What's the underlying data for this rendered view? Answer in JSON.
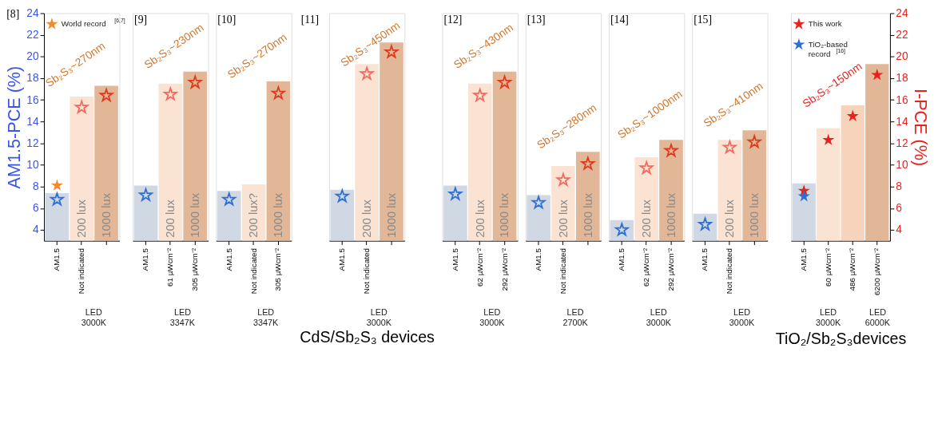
{
  "chart_data": [
    {
      "type": "bar",
      "title": "[8]",
      "ylabel": "AM1.5-PCE (%)",
      "ylim": [
        3,
        24
      ],
      "yticks": [
        4,
        6,
        8,
        10,
        12,
        14,
        16,
        18,
        20,
        22,
        24
      ],
      "legend": "top left",
      "marker": "star",
      "categories": [
        "AM1.5",
        "Not indicated",
        null
      ],
      "annotations": [
        "Sb₂S₃~270nm",
        "LED 3000K"
      ],
      "series": [
        {
          "color": "#cfd8e3",
          "values": [
            7.4,
            null,
            null
          ]
        },
        {
          "name": "200 lux",
          "color": "#fbe3d4",
          "values": [
            null,
            16.3,
            null
          ]
        },
        {
          "name": "1000 lux",
          "color": "#e2b797",
          "values": [
            null,
            null,
            17.3
          ]
        },
        {
          "type": "scatter",
          "values": [
            6.8,
            15.3,
            16.4
          ],
          "colors": [
            "#2e6fd1",
            "#f06a5e",
            "#e03a1e"
          ]
        },
        {
          "type": "scatter",
          "name": "World record $^{[6,7]}$",
          "color": "#f08a2a",
          "values": [
            8.1,
            null,
            null
          ]
        }
      ]
    },
    {
      "type": "bar",
      "title": "[9]",
      "ylim": [
        3,
        24
      ],
      "tick_labels": "x",
      "marker": "star",
      "categories": [
        "AM1.5",
        "61 µWcm⁻²",
        "305 µWcm⁻²"
      ],
      "annotations": [
        "Sb₂S₃~230nm",
        "LED 3347K"
      ],
      "series": [
        {
          "color": "#cfd8e3",
          "values": [
            8.1,
            null,
            null
          ]
        },
        {
          "name": "200 lux",
          "color": "#fbe3d4",
          "values": [
            null,
            17.5,
            null
          ]
        },
        {
          "name": "1000 lux",
          "color": "#e2b797",
          "values": [
            null,
            null,
            18.6
          ]
        },
        {
          "type": "scatter",
          "values": [
            7.2,
            16.5,
            17.6
          ],
          "colors": [
            "#2e6fd1",
            "#f06a5e",
            "#e03a1e"
          ]
        }
      ]
    },
    {
      "type": "bar",
      "title": "[10]",
      "ylim": [
        3,
        24
      ],
      "tick_labels": "x",
      "marker": "star",
      "categories": [
        "AM1.5",
        "Not indicated",
        "305 µWcm⁻²"
      ],
      "annotations": [
        "Sb₂S₃~270nm",
        "LED 3347K"
      ],
      "series": [
        {
          "color": "#cfd8e3",
          "values": [
            7.6,
            null,
            null
          ]
        },
        {
          "name": "200 lux?",
          "color": "#fbe3d4",
          "values": [
            null,
            8.2,
            null
          ]
        },
        {
          "name": "1000 lux",
          "color": "#e2b797",
          "values": [
            null,
            null,
            17.7
          ]
        },
        {
          "type": "scatter",
          "values": [
            6.8,
            null,
            16.6
          ],
          "colors": [
            "#2e6fd1",
            "#f06a5e",
            "#e03a1e"
          ]
        }
      ]
    },
    {
      "type": "bar",
      "title": "[11]",
      "ylim": [
        3,
        24
      ],
      "tick_labels": "x",
      "marker": "star",
      "xlabel": "CdS/Sb₂S₃ devices",
      "categories": [
        "AM1.5",
        "Not indicated",
        null
      ],
      "annotations": [
        "Sb₂S₃~450nm",
        "LED 3000K"
      ],
      "series": [
        {
          "color": "#cfd8e3",
          "values": [
            7.7,
            null,
            null
          ]
        },
        {
          "name": "200 lux",
          "color": "#fbe3d4",
          "values": [
            null,
            19.3,
            null
          ]
        },
        {
          "name": "1000 lux",
          "color": "#e2b797",
          "values": [
            null,
            null,
            21.3
          ]
        },
        {
          "type": "scatter",
          "values": [
            7.1,
            18.4,
            20.4
          ],
          "colors": [
            "#2e6fd1",
            "#f06a5e",
            "#e03a1e"
          ]
        }
      ]
    },
    {
      "type": "bar",
      "title": "[12]",
      "ylim": [
        3,
        24
      ],
      "tick_labels": "x",
      "marker": "star",
      "categories": [
        "AM1.5",
        "62 µWcm⁻²",
        "292 µWcm⁻²"
      ],
      "annotations": [
        "Sb₂S₃~430nm",
        "LED 3000K"
      ],
      "series": [
        {
          "color": "#cfd8e3",
          "values": [
            8.1,
            null,
            null
          ]
        },
        {
          "name": "200 lux",
          "color": "#fbe3d4",
          "values": [
            null,
            17.5,
            null
          ]
        },
        {
          "name": "1000 lux",
          "color": "#e2b797",
          "values": [
            null,
            null,
            18.6
          ]
        },
        {
          "type": "scatter",
          "values": [
            7.3,
            16.4,
            17.6
          ],
          "colors": [
            "#2e6fd1",
            "#f06a5e",
            "#e03a1e"
          ]
        }
      ]
    },
    {
      "type": "bar",
      "title": "[13]",
      "ylim": [
        3,
        24
      ],
      "tick_labels": "x",
      "marker": "star",
      "categories": [
        "AM1.5",
        "Not indicated",
        null
      ],
      "annotations": [
        "Sb₂S₃~280nm",
        "LED 2700K"
      ],
      "series": [
        {
          "color": "#cfd8e3",
          "values": [
            7.2,
            null,
            null
          ]
        },
        {
          "name": "200 lux",
          "color": "#fbe3d4",
          "values": [
            null,
            9.9,
            null
          ]
        },
        {
          "name": "1000 lux",
          "color": "#e2b797",
          "values": [
            null,
            null,
            11.2
          ]
        },
        {
          "type": "scatter",
          "values": [
            6.5,
            8.6,
            10.1
          ],
          "colors": [
            "#2e6fd1",
            "#f06a5e",
            "#e03a1e"
          ]
        }
      ]
    },
    {
      "type": "bar",
      "title": "[14]",
      "ylim": [
        3,
        24
      ],
      "tick_labels": "x",
      "marker": "star",
      "categories": [
        "AM1.5",
        "62 µWcm⁻²",
        "292 µWcm⁻²"
      ],
      "annotations": [
        "Sb₂S₃~1000nm",
        "LED 3000K"
      ],
      "series": [
        {
          "color": "#cfd8e3",
          "values": [
            4.9,
            null,
            null
          ]
        },
        {
          "name": "200 lux",
          "color": "#fbe3d4",
          "values": [
            null,
            10.7,
            null
          ]
        },
        {
          "name": "1000 lux",
          "color": "#e2b797",
          "values": [
            null,
            null,
            12.3
          ]
        },
        {
          "type": "scatter",
          "values": [
            4.0,
            9.7,
            11.3
          ],
          "colors": [
            "#2e6fd1",
            "#f06a5e",
            "#e03a1e"
          ]
        }
      ]
    },
    {
      "type": "bar",
      "title": "[15]",
      "ylim": [
        3,
        24
      ],
      "tick_labels": "x",
      "marker": "star",
      "categories": [
        "AM1.5",
        "Not indicated",
        null
      ],
      "annotations": [
        "Sb₂S₃~410nm",
        "LED 3000K"
      ],
      "series": [
        {
          "color": "#cfd8e3",
          "values": [
            5.5,
            null,
            null
          ]
        },
        {
          "name": "200 lux",
          "color": "#fbe3d4",
          "values": [
            null,
            12.3,
            null
          ]
        },
        {
          "name": "1000 lux",
          "color": "#e2b797",
          "values": [
            null,
            null,
            13.2
          ]
        },
        {
          "type": "scatter",
          "values": [
            4.5,
            11.6,
            12.1
          ],
          "colors": [
            "#2e6fd1",
            "#f06a5e",
            "#e03a1e"
          ]
        }
      ]
    },
    {
      "type": "bar",
      "y2label": "I-PCE (%)",
      "y2lim": [
        3,
        24
      ],
      "y2ticks": [
        4,
        6,
        8,
        10,
        12,
        14,
        16,
        18,
        20,
        22,
        24
      ],
      "legend": "top left",
      "marker": "star",
      "xlabel": "TiO₂/Sb₂S₃devices",
      "categories": [
        "AM1.5",
        "60 µWcm⁻²",
        "486 µWcm⁻²",
        "6200 µWcm⁻²"
      ],
      "annotations": [
        "Sb₂S₃~150nm",
        "LED 3000K",
        "LED 6000K"
      ],
      "series": [
        {
          "axis": "y2",
          "values": [
            8.3,
            13.4,
            15.5,
            19.3
          ],
          "colors": [
            "#cfd8e3",
            "#fbe3d4",
            "#f8d3bb",
            "#e2b797"
          ]
        },
        {
          "type": "scatter",
          "axis": "y2",
          "name": "This work",
          "color": "#e8231e",
          "values": [
            7.6,
            12.3,
            14.5,
            18.3
          ]
        },
        {
          "type": "scatter",
          "axis": "y2",
          "name": "TiO₂-based record $^{[16]}$",
          "color": "#2f6fd0",
          "values": [
            7.1,
            null,
            null,
            null
          ]
        }
      ]
    }
  ]
}
